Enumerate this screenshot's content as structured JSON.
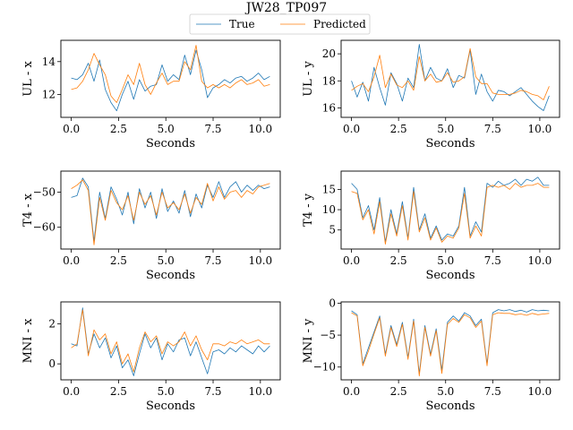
{
  "figure": {
    "title": "JW28_TP097",
    "legend": {
      "placement": "top-center",
      "entries": [
        {
          "name": "True",
          "color": "#1f77b4"
        },
        {
          "name": "Predicted",
          "color": "#ff7f0e"
        }
      ]
    }
  },
  "chart_data": [
    {
      "type": "line",
      "ylabel": "UL - x",
      "xlabel": "Seconds",
      "xlim": [
        -0.55,
        11.05
      ],
      "ylim": [
        10.6,
        15.3
      ],
      "xticks": [
        0.0,
        2.5,
        5.0,
        7.5,
        10.0
      ],
      "xticklabels": [
        "0.0",
        "2.5",
        "5.0",
        "7.5",
        "10.0"
      ],
      "yticks": [
        12,
        14
      ],
      "yticklabels": [
        "12",
        "14"
      ],
      "x": [
        0.0,
        0.3,
        0.6,
        0.9,
        1.2,
        1.5,
        1.8,
        2.1,
        2.4,
        2.7,
        3.0,
        3.3,
        3.6,
        3.9,
        4.2,
        4.5,
        4.8,
        5.1,
        5.4,
        5.7,
        6.0,
        6.3,
        6.6,
        6.9,
        7.2,
        7.5,
        7.8,
        8.1,
        8.4,
        8.7,
        9.0,
        9.3,
        9.6,
        9.9,
        10.2,
        10.5
      ],
      "series": [
        {
          "name": "True",
          "color": "#1f77b4",
          "values": [
            13.0,
            12.9,
            13.2,
            13.9,
            12.8,
            14.1,
            12.3,
            11.5,
            11.0,
            12.0,
            12.8,
            11.7,
            12.9,
            12.2,
            12.5,
            12.6,
            13.8,
            12.8,
            13.2,
            12.9,
            14.4,
            13.2,
            14.7,
            13.5,
            11.8,
            12.4,
            12.6,
            12.9,
            12.7,
            13.0,
            13.1,
            12.8,
            13.0,
            13.3,
            12.9,
            13.1
          ]
        },
        {
          "name": "Predicted",
          "color": "#ff7f0e",
          "values": [
            12.3,
            12.4,
            12.8,
            13.5,
            14.5,
            13.8,
            13.2,
            11.9,
            11.5,
            12.3,
            13.2,
            12.6,
            13.9,
            12.6,
            12.0,
            12.7,
            13.3,
            12.6,
            12.8,
            12.8,
            14.0,
            13.5,
            15.0,
            12.8,
            12.4,
            12.6,
            12.4,
            12.6,
            12.4,
            12.7,
            12.9,
            12.6,
            12.7,
            12.9,
            12.5,
            12.6
          ]
        }
      ]
    },
    {
      "type": "line",
      "ylabel": "UL - y",
      "xlabel": "Seconds",
      "xlim": [
        -0.55,
        11.05
      ],
      "ylim": [
        15.3,
        21.0
      ],
      "xticks": [
        0.0,
        2.5,
        5.0,
        7.5,
        10.0
      ],
      "xticklabels": [
        "0.0",
        "2.5",
        "5.0",
        "7.5",
        "10.0"
      ],
      "yticks": [
        16,
        18,
        20
      ],
      "yticklabels": [
        "16",
        "18",
        "20"
      ],
      "x": [
        0.0,
        0.3,
        0.6,
        0.9,
        1.2,
        1.5,
        1.8,
        2.1,
        2.4,
        2.7,
        3.0,
        3.3,
        3.6,
        3.9,
        4.2,
        4.5,
        4.8,
        5.1,
        5.4,
        5.7,
        6.0,
        6.3,
        6.6,
        6.9,
        7.2,
        7.5,
        7.8,
        8.1,
        8.4,
        8.7,
        9.0,
        9.3,
        9.6,
        9.9,
        10.2,
        10.5
      ],
      "series": [
        {
          "name": "True",
          "color": "#1f77b4",
          "values": [
            18.0,
            16.8,
            17.9,
            16.5,
            19.0,
            17.5,
            16.2,
            18.6,
            17.8,
            16.5,
            18.2,
            17.5,
            20.7,
            18.0,
            19.0,
            18.2,
            18.0,
            18.9,
            17.5,
            18.4,
            18.2,
            20.3,
            17.0,
            18.5,
            17.2,
            16.5,
            17.3,
            17.2,
            16.9,
            17.2,
            17.5,
            17.0,
            16.5,
            16.1,
            15.8,
            16.9
          ]
        },
        {
          "name": "Predicted",
          "color": "#ff7f0e",
          "values": [
            17.3,
            17.6,
            17.8,
            17.2,
            18.3,
            19.9,
            17.5,
            18.5,
            17.7,
            17.5,
            18.0,
            17.3,
            19.8,
            18.0,
            18.5,
            17.9,
            18.0,
            18.6,
            17.9,
            18.0,
            18.3,
            20.4,
            18.3,
            17.8,
            17.8,
            17.1,
            17.0,
            17.0,
            17.0,
            17.1,
            17.3,
            17.2,
            17.0,
            16.9,
            16.6,
            17.6
          ]
        }
      ]
    },
    {
      "type": "line",
      "ylabel": "T4 - x",
      "xlabel": "Seconds",
      "xlim": [
        -0.55,
        11.05
      ],
      "ylim": [
        -66.2,
        -44.0
      ],
      "xticks": [
        0.0,
        2.5,
        5.0,
        7.5,
        10.0
      ],
      "xticklabels": [
        "0.0",
        "2.5",
        "5.0",
        "7.5",
        "10.0"
      ],
      "yticks": [
        -60,
        -50
      ],
      "yticklabels": [
        "−60",
        "−50"
      ],
      "x": [
        0.0,
        0.3,
        0.6,
        0.9,
        1.2,
        1.5,
        1.8,
        2.1,
        2.4,
        2.7,
        3.0,
        3.3,
        3.6,
        3.9,
        4.2,
        4.5,
        4.8,
        5.1,
        5.4,
        5.7,
        6.0,
        6.3,
        6.6,
        6.9,
        7.2,
        7.5,
        7.8,
        8.1,
        8.4,
        8.7,
        9.0,
        9.3,
        9.6,
        9.9,
        10.2,
        10.5
      ],
      "series": [
        {
          "name": "True",
          "color": "#1f77b4",
          "values": [
            -51.5,
            -51.0,
            -46.0,
            -48.5,
            -64.0,
            -50.0,
            -57.5,
            -48.5,
            -52.0,
            -56.5,
            -50.0,
            -59.0,
            -49.0,
            -54.5,
            -50.0,
            -57.5,
            -49.0,
            -55.5,
            -52.5,
            -56.0,
            -49.5,
            -57.0,
            -50.5,
            -54.5,
            -48.0,
            -51.5,
            -47.0,
            -51.5,
            -48.5,
            -47.0,
            -50.0,
            -48.0,
            -49.5,
            -48.0,
            -49.0,
            -48.5
          ]
        },
        {
          "name": "Predicted",
          "color": "#ff7f0e",
          "values": [
            -49.0,
            -48.0,
            -46.5,
            -49.5,
            -65.0,
            -51.5,
            -58.0,
            -49.5,
            -53.0,
            -55.0,
            -51.0,
            -58.0,
            -50.0,
            -53.5,
            -51.0,
            -56.5,
            -50.0,
            -54.5,
            -53.0,
            -55.0,
            -50.5,
            -56.0,
            -51.5,
            -53.5,
            -47.5,
            -52.5,
            -48.5,
            -52.0,
            -50.0,
            -49.5,
            -51.5,
            -49.5,
            -50.5,
            -48.5,
            -48.0,
            -47.5
          ]
        }
      ]
    },
    {
      "type": "line",
      "ylabel": "T4 - y",
      "xlabel": "Seconds",
      "xlim": [
        -0.55,
        11.05
      ],
      "ylim": [
        0.3,
        19.5
      ],
      "xticks": [
        0.0,
        2.5,
        5.0,
        7.5,
        10.0
      ],
      "xticklabels": [
        "0.0",
        "2.5",
        "5.0",
        "7.5",
        "10.0"
      ],
      "yticks": [
        5,
        10,
        15
      ],
      "yticklabels": [
        "5",
        "10",
        "15"
      ],
      "x": [
        0.0,
        0.3,
        0.6,
        0.9,
        1.2,
        1.5,
        1.8,
        2.1,
        2.4,
        2.7,
        3.0,
        3.3,
        3.6,
        3.9,
        4.2,
        4.5,
        4.8,
        5.1,
        5.4,
        5.7,
        6.0,
        6.3,
        6.6,
        6.9,
        7.2,
        7.5,
        7.8,
        8.1,
        8.4,
        8.7,
        9.0,
        9.3,
        9.6,
        9.9,
        10.2,
        10.5
      ],
      "series": [
        {
          "name": "True",
          "color": "#1f77b4",
          "values": [
            16.5,
            15.0,
            8.0,
            11.0,
            5.0,
            13.0,
            2.0,
            10.0,
            4.0,
            12.0,
            3.0,
            15.5,
            5.0,
            9.0,
            3.0,
            6.0,
            2.5,
            4.0,
            3.5,
            6.0,
            15.5,
            3.5,
            7.0,
            4.5,
            16.5,
            15.5,
            17.0,
            16.0,
            16.5,
            17.5,
            16.0,
            17.5,
            17.0,
            18.0,
            16.0,
            16.0
          ]
        },
        {
          "name": "Predicted",
          "color": "#ff7f0e",
          "values": [
            14.5,
            14.0,
            7.5,
            10.0,
            4.0,
            12.0,
            1.5,
            9.0,
            3.5,
            11.0,
            2.5,
            14.5,
            4.5,
            8.0,
            2.5,
            5.5,
            2.0,
            3.5,
            3.0,
            5.5,
            14.0,
            3.0,
            6.0,
            3.5,
            15.5,
            16.0,
            15.5,
            16.0,
            15.0,
            16.5,
            15.5,
            16.0,
            16.0,
            16.5,
            15.5,
            15.5
          ]
        }
      ]
    },
    {
      "type": "line",
      "ylabel": "MNI - x",
      "xlabel": "Seconds",
      "xlim": [
        -0.55,
        11.05
      ],
      "ylim": [
        -0.8,
        3.1
      ],
      "xticks": [
        0.0,
        2.5,
        5.0,
        7.5,
        10.0
      ],
      "xticklabels": [
        "0.0",
        "2.5",
        "5.0",
        "7.5",
        "10.0"
      ],
      "yticks": [
        0,
        2
      ],
      "yticklabels": [
        "0",
        "2"
      ],
      "x": [
        0.0,
        0.3,
        0.6,
        0.9,
        1.2,
        1.5,
        1.8,
        2.1,
        2.4,
        2.7,
        3.0,
        3.3,
        3.6,
        3.9,
        4.2,
        4.5,
        4.8,
        5.1,
        5.4,
        5.7,
        6.0,
        6.3,
        6.6,
        6.9,
        7.2,
        7.5,
        7.8,
        8.1,
        8.4,
        8.7,
        9.0,
        9.3,
        9.6,
        9.9,
        10.2,
        10.5
      ],
      "series": [
        {
          "name": "True",
          "color": "#1f77b4",
          "values": [
            1.0,
            0.9,
            2.8,
            0.5,
            1.5,
            0.8,
            1.3,
            0.3,
            0.9,
            -0.2,
            0.2,
            -0.6,
            0.5,
            1.5,
            0.8,
            1.3,
            0.2,
            1.0,
            0.6,
            1.2,
            1.3,
            0.4,
            1.1,
            0.3,
            -0.5,
            0.6,
            0.7,
            0.5,
            0.8,
            0.6,
            0.9,
            0.7,
            0.5,
            0.9,
            0.6,
            0.9
          ]
        },
        {
          "name": "Predicted",
          "color": "#ff7f0e",
          "values": [
            0.8,
            1.0,
            2.7,
            0.4,
            1.7,
            1.2,
            1.5,
            0.5,
            1.1,
            0.0,
            0.5,
            -0.4,
            0.8,
            1.6,
            1.1,
            1.4,
            0.5,
            1.1,
            0.9,
            1.1,
            1.6,
            0.9,
            1.4,
            0.7,
            0.2,
            1.0,
            1.0,
            0.9,
            1.1,
            1.0,
            1.2,
            1.0,
            1.1,
            1.2,
            1.0,
            1.0
          ]
        }
      ]
    },
    {
      "type": "line",
      "ylabel": "MNI - y",
      "xlabel": "Seconds",
      "xlim": [
        -0.55,
        11.05
      ],
      "ylim": [
        -12.0,
        0.2
      ],
      "xticks": [
        0.0,
        2.5,
        5.0,
        7.5,
        10.0
      ],
      "xticklabels": [
        "0.0",
        "2.5",
        "5.0",
        "7.5",
        "10.0"
      ],
      "yticks": [
        -10,
        -5,
        0
      ],
      "yticklabels": [
        "−10",
        "−5",
        "0"
      ],
      "x": [
        0.0,
        0.3,
        0.6,
        0.9,
        1.2,
        1.5,
        1.8,
        2.1,
        2.4,
        2.7,
        3.0,
        3.3,
        3.6,
        3.9,
        4.2,
        4.5,
        4.8,
        5.1,
        5.4,
        5.7,
        6.0,
        6.3,
        6.6,
        6.9,
        7.2,
        7.5,
        7.8,
        8.1,
        8.4,
        8.7,
        9.0,
        9.3,
        9.6,
        9.9,
        10.2,
        10.5
      ],
      "series": [
        {
          "name": "True",
          "color": "#1f77b4",
          "values": [
            -1.2,
            -1.8,
            -9.5,
            -7.0,
            -4.5,
            -2.0,
            -8.0,
            -3.5,
            -6.5,
            -3.0,
            -8.5,
            -2.5,
            -11.0,
            -3.5,
            -8.0,
            -4.0,
            -10.5,
            -3.0,
            -2.0,
            -2.8,
            -1.5,
            -2.0,
            -3.5,
            -2.5,
            -9.5,
            -1.5,
            -1.0,
            -1.2,
            -1.0,
            -1.3,
            -1.1,
            -1.4,
            -1.0,
            -1.2,
            -1.1,
            -1.2
          ]
        },
        {
          "name": "Predicted",
          "color": "#ff7f0e",
          "values": [
            -1.5,
            -2.0,
            -9.8,
            -7.5,
            -4.8,
            -2.3,
            -8.3,
            -3.8,
            -6.8,
            -3.3,
            -8.8,
            -2.8,
            -11.4,
            -3.8,
            -8.3,
            -4.3,
            -11.0,
            -3.3,
            -2.4,
            -3.0,
            -1.8,
            -2.3,
            -3.8,
            -2.8,
            -9.8,
            -1.8,
            -1.5,
            -1.6,
            -1.6,
            -1.8,
            -1.7,
            -1.9,
            -1.6,
            -1.8,
            -1.7,
            -1.6
          ]
        }
      ]
    }
  ]
}
